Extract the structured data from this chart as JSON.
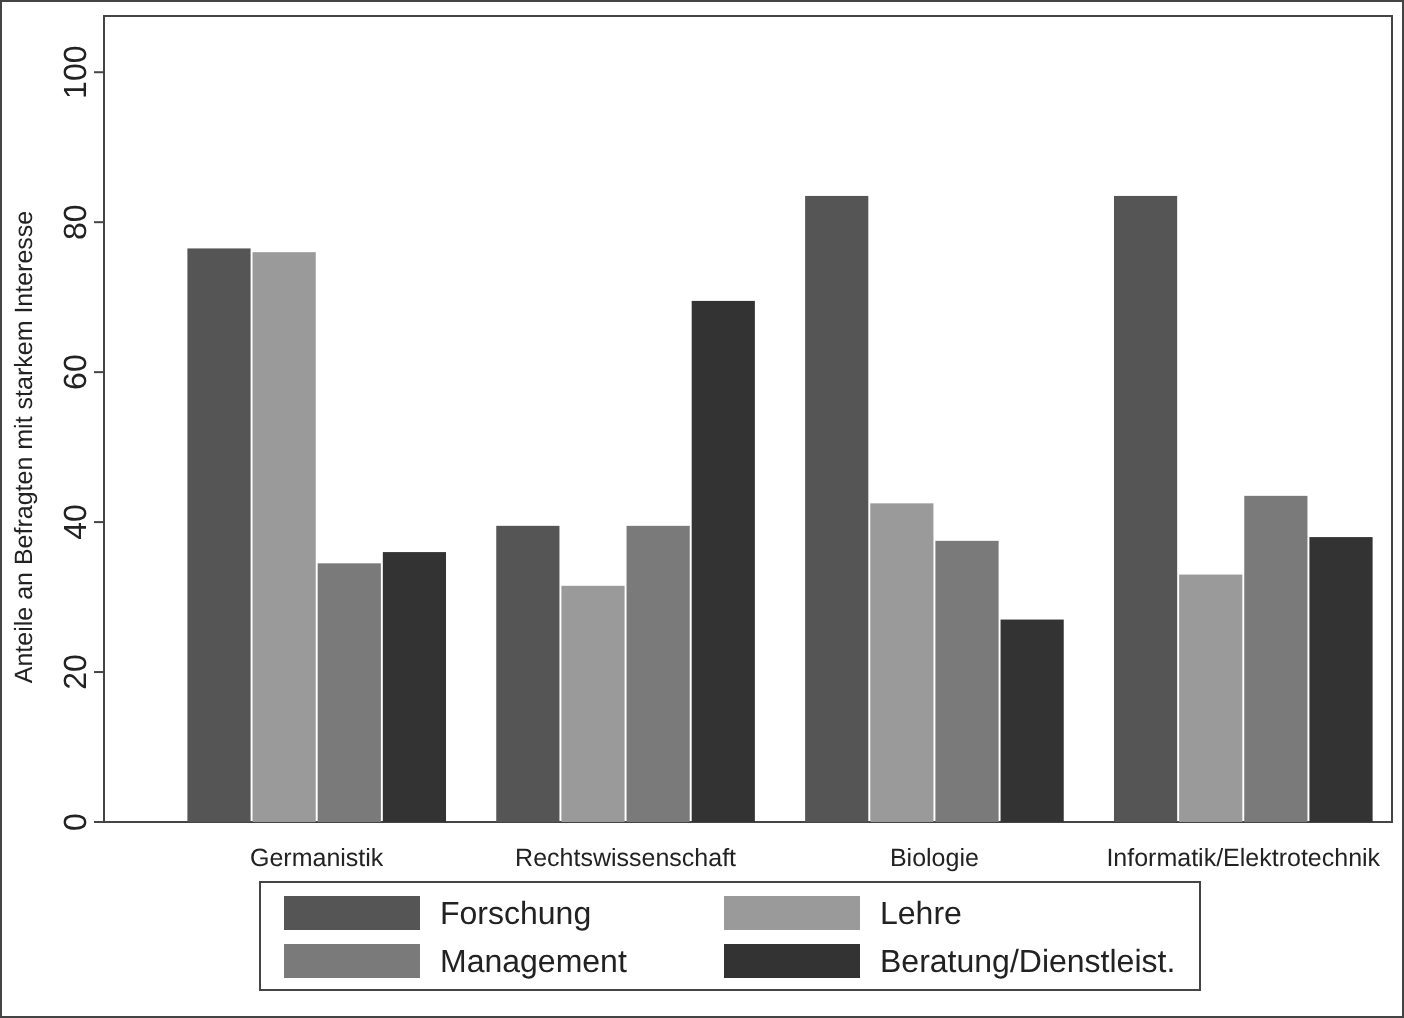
{
  "chart_data": {
    "type": "bar",
    "ylabel": "Anteile an Befragten mit starkem Interesse",
    "categories": [
      "Germanistik",
      "Rechtswissenschaft",
      "Biologie",
      "Informatik/Elektrotechnik"
    ],
    "series": [
      {
        "name": "Forschung",
        "color": "#555555",
        "values": [
          76.5,
          39.5,
          83.5,
          83.5
        ]
      },
      {
        "name": "Lehre",
        "color": "#9a9a9a",
        "values": [
          76,
          31.5,
          42.5,
          33
        ]
      },
      {
        "name": "Management",
        "color": "#7a7a7a",
        "values": [
          34.5,
          39.5,
          37.5,
          43.5
        ]
      },
      {
        "name": "Beratung/Dienstleist.",
        "color": "#333333",
        "values": [
          36,
          69.5,
          27,
          38
        ]
      }
    ],
    "ylim": [
      0,
      107.5
    ],
    "yticks": [
      0,
      20,
      40,
      60,
      80,
      100
    ],
    "grid": false,
    "legend": "bottom"
  }
}
